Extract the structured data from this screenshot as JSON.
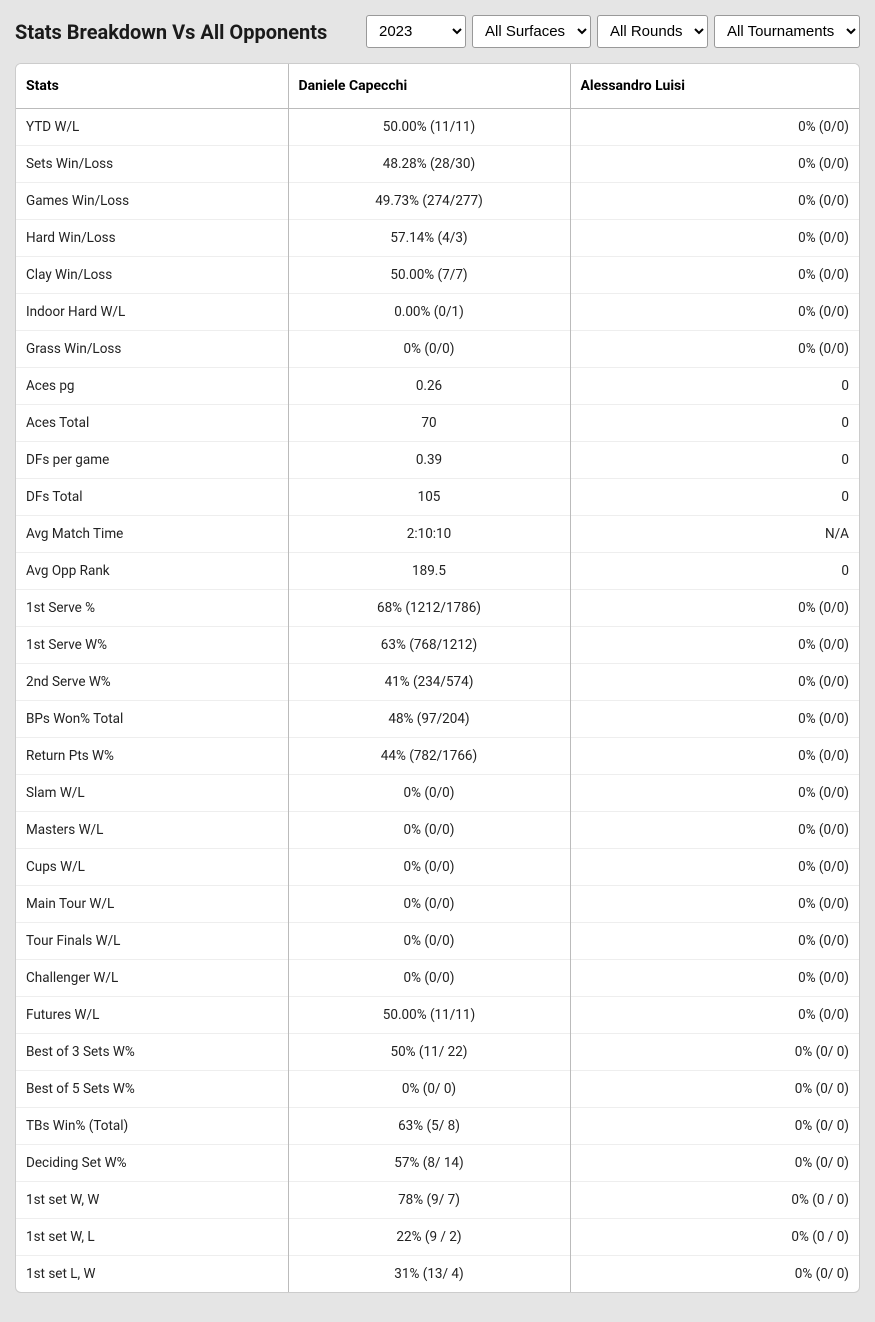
{
  "title": "Stats Breakdown Vs All Opponents",
  "filters": {
    "year": "2023",
    "surface": "All Surfaces",
    "round": "All Rounds",
    "tournament": "All Tournaments"
  },
  "columns": {
    "stats": "Stats",
    "p1": "Daniele Capecchi",
    "p2": "Alessandro Luisi"
  },
  "rows": [
    {
      "label": "YTD W/L",
      "p1": "50.00% (11/11)",
      "p2": "0% (0/0)"
    },
    {
      "label": "Sets Win/Loss",
      "p1": "48.28% (28/30)",
      "p2": "0% (0/0)"
    },
    {
      "label": "Games Win/Loss",
      "p1": "49.73% (274/277)",
      "p2": "0% (0/0)"
    },
    {
      "label": "Hard Win/Loss",
      "p1": "57.14% (4/3)",
      "p2": "0% (0/0)"
    },
    {
      "label": "Clay Win/Loss",
      "p1": "50.00% (7/7)",
      "p2": "0% (0/0)"
    },
    {
      "label": "Indoor Hard W/L",
      "p1": "0.00% (0/1)",
      "p2": "0% (0/0)"
    },
    {
      "label": "Grass Win/Loss",
      "p1": "0% (0/0)",
      "p2": "0% (0/0)"
    },
    {
      "label": "Aces pg",
      "p1": "0.26",
      "p2": "0"
    },
    {
      "label": "Aces Total",
      "p1": "70",
      "p2": "0"
    },
    {
      "label": "DFs per game",
      "p1": "0.39",
      "p2": "0"
    },
    {
      "label": "DFs Total",
      "p1": "105",
      "p2": "0"
    },
    {
      "label": "Avg Match Time",
      "p1": "2:10:10",
      "p2": "N/A"
    },
    {
      "label": "Avg Opp Rank",
      "p1": "189.5",
      "p2": "0"
    },
    {
      "label": "1st Serve %",
      "p1": "68% (1212/1786)",
      "p2": "0% (0/0)"
    },
    {
      "label": "1st Serve W%",
      "p1": "63% (768/1212)",
      "p2": "0% (0/0)"
    },
    {
      "label": "2nd Serve W%",
      "p1": "41% (234/574)",
      "p2": "0% (0/0)"
    },
    {
      "label": "BPs Won% Total",
      "p1": "48% (97/204)",
      "p2": "0% (0/0)"
    },
    {
      "label": "Return Pts W%",
      "p1": "44% (782/1766)",
      "p2": "0% (0/0)"
    },
    {
      "label": "Slam W/L",
      "p1": "0% (0/0)",
      "p2": "0% (0/0)"
    },
    {
      "label": "Masters W/L",
      "p1": "0% (0/0)",
      "p2": "0% (0/0)"
    },
    {
      "label": "Cups W/L",
      "p1": "0% (0/0)",
      "p2": "0% (0/0)"
    },
    {
      "label": "Main Tour W/L",
      "p1": "0% (0/0)",
      "p2": "0% (0/0)"
    },
    {
      "label": "Tour Finals W/L",
      "p1": "0% (0/0)",
      "p2": "0% (0/0)"
    },
    {
      "label": "Challenger W/L",
      "p1": "0% (0/0)",
      "p2": "0% (0/0)"
    },
    {
      "label": "Futures W/L",
      "p1": "50.00% (11/11)",
      "p2": "0% (0/0)"
    },
    {
      "label": "Best of 3 Sets W%",
      "p1": "50% (11/ 22)",
      "p2": "0% (0/ 0)"
    },
    {
      "label": "Best of 5 Sets W%",
      "p1": "0% (0/ 0)",
      "p2": "0% (0/ 0)"
    },
    {
      "label": "TBs Win% (Total)",
      "p1": "63% (5/ 8)",
      "p2": "0% (0/ 0)"
    },
    {
      "label": "Deciding Set W%",
      "p1": "57% (8/ 14)",
      "p2": "0% (0/ 0)"
    },
    {
      "label": "1st set W, W",
      "p1": "78% (9/ 7)",
      "p2": "0% (0 / 0)"
    },
    {
      "label": "1st set W, L",
      "p1": "22% (9 / 2)",
      "p2": "0% (0 / 0)"
    },
    {
      "label": "1st set L, W",
      "p1": "31% (13/ 4)",
      "p2": "0% (0/ 0)"
    }
  ]
}
